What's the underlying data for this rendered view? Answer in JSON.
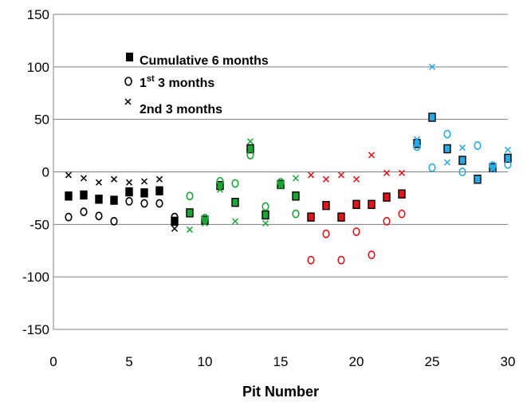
{
  "chart_data": {
    "type": "scatter",
    "title": "",
    "xlabel": "Pit Number",
    "ylabel": "",
    "xlim": [
      0,
      30
    ],
    "ylim": [
      -150,
      150
    ],
    "x_ticks": [
      "0",
      "5",
      "10",
      "15",
      "20",
      "25",
      "30"
    ],
    "y_ticks": [
      "150",
      "100",
      "50",
      "0",
      "-50",
      "-100",
      "-150"
    ],
    "grid": "horizontal",
    "legend": {
      "placement": "upper-left",
      "entries": [
        {
          "marker": "square",
          "label": "Cumulative 6 months"
        },
        {
          "marker": "circle",
          "label_main": "1",
          "label_sup": "st",
          "label_tail": " 3 months"
        },
        {
          "marker": "x",
          "label": "2nd 3 months"
        }
      ]
    },
    "colors": {
      "black": "#000000",
      "green": "#1aa535",
      "red": "#e3141c",
      "cyan": "#29a9e1",
      "grid": "#808080",
      "square_border": "#000000"
    },
    "series": [
      {
        "marker": "square",
        "points": [
          {
            "x": 1,
            "y": -23,
            "color": "black"
          },
          {
            "x": 2,
            "y": -22,
            "color": "black"
          },
          {
            "x": 3,
            "y": -26,
            "color": "black"
          },
          {
            "x": 4,
            "y": -27,
            "color": "black"
          },
          {
            "x": 5,
            "y": -19,
            "color": "black"
          },
          {
            "x": 6,
            "y": -20,
            "color": "black"
          },
          {
            "x": 7,
            "y": -18,
            "color": "black"
          },
          {
            "x": 8,
            "y": -47,
            "color": "black"
          },
          {
            "x": 9,
            "y": -39,
            "color": "green"
          },
          {
            "x": 10,
            "y": -46,
            "color": "green"
          },
          {
            "x": 11,
            "y": -13,
            "color": "green"
          },
          {
            "x": 12,
            "y": -29,
            "color": "green"
          },
          {
            "x": 13,
            "y": 22,
            "color": "green"
          },
          {
            "x": 14,
            "y": -41,
            "color": "green"
          },
          {
            "x": 15,
            "y": -12,
            "color": "green"
          },
          {
            "x": 16,
            "y": -23,
            "color": "green"
          },
          {
            "x": 17,
            "y": -43,
            "color": "red"
          },
          {
            "x": 18,
            "y": -32,
            "color": "red"
          },
          {
            "x": 19,
            "y": -43,
            "color": "red"
          },
          {
            "x": 20,
            "y": -31,
            "color": "red"
          },
          {
            "x": 21,
            "y": -31,
            "color": "red"
          },
          {
            "x": 22,
            "y": -24,
            "color": "red"
          },
          {
            "x": 23,
            "y": -21,
            "color": "red"
          },
          {
            "x": 24,
            "y": 27,
            "color": "cyan"
          },
          {
            "x": 25,
            "y": 52,
            "color": "cyan"
          },
          {
            "x": 26,
            "y": 22,
            "color": "cyan"
          },
          {
            "x": 27,
            "y": 11,
            "color": "cyan"
          },
          {
            "x": 28,
            "y": -7,
            "color": "cyan"
          },
          {
            "x": 29,
            "y": 4,
            "color": "cyan"
          },
          {
            "x": 30,
            "y": 13,
            "color": "cyan"
          }
        ]
      },
      {
        "marker": "circle",
        "points": [
          {
            "x": 1,
            "y": -43,
            "color": "black"
          },
          {
            "x": 2,
            "y": -38,
            "color": "black"
          },
          {
            "x": 3,
            "y": -42,
            "color": "black"
          },
          {
            "x": 4,
            "y": -47,
            "color": "black"
          },
          {
            "x": 5,
            "y": -28,
            "color": "black"
          },
          {
            "x": 6,
            "y": -30,
            "color": "black"
          },
          {
            "x": 7,
            "y": -30,
            "color": "black"
          },
          {
            "x": 8,
            "y": -43,
            "color": "black"
          },
          {
            "x": 9,
            "y": -23,
            "color": "green"
          },
          {
            "x": 10,
            "y": -44,
            "color": "green"
          },
          {
            "x": 11,
            "y": -9,
            "color": "green"
          },
          {
            "x": 12,
            "y": -11,
            "color": "green"
          },
          {
            "x": 13,
            "y": 16,
            "color": "green"
          },
          {
            "x": 14,
            "y": -33,
            "color": "green"
          },
          {
            "x": 15,
            "y": -10,
            "color": "green"
          },
          {
            "x": 16,
            "y": -40,
            "color": "green"
          },
          {
            "x": 17,
            "y": -84,
            "color": "red"
          },
          {
            "x": 18,
            "y": -59,
            "color": "red"
          },
          {
            "x": 19,
            "y": -84,
            "color": "red"
          },
          {
            "x": 20,
            "y": -57,
            "color": "red"
          },
          {
            "x": 21,
            "y": -79,
            "color": "red"
          },
          {
            "x": 22,
            "y": -47,
            "color": "red"
          },
          {
            "x": 23,
            "y": -40,
            "color": "red"
          },
          {
            "x": 24,
            "y": 24,
            "color": "cyan"
          },
          {
            "x": 25,
            "y": 4,
            "color": "cyan"
          },
          {
            "x": 26,
            "y": 36,
            "color": "cyan"
          },
          {
            "x": 27,
            "y": 0,
            "color": "cyan"
          },
          {
            "x": 28,
            "y": 25,
            "color": "cyan"
          },
          {
            "x": 29,
            "y": 6,
            "color": "cyan"
          },
          {
            "x": 30,
            "y": 7,
            "color": "cyan"
          }
        ]
      },
      {
        "marker": "x",
        "points": [
          {
            "x": 1,
            "y": -3,
            "color": "black"
          },
          {
            "x": 2,
            "y": -6,
            "color": "black"
          },
          {
            "x": 3,
            "y": -10,
            "color": "black"
          },
          {
            "x": 4,
            "y": -7,
            "color": "black"
          },
          {
            "x": 5,
            "y": -10,
            "color": "black"
          },
          {
            "x": 6,
            "y": -9,
            "color": "black"
          },
          {
            "x": 7,
            "y": -7,
            "color": "black"
          },
          {
            "x": 8,
            "y": -54,
            "color": "black"
          },
          {
            "x": 9,
            "y": -55,
            "color": "green"
          },
          {
            "x": 10,
            "y": -49,
            "color": "green"
          },
          {
            "x": 11,
            "y": -17,
            "color": "green"
          },
          {
            "x": 12,
            "y": -47,
            "color": "green"
          },
          {
            "x": 13,
            "y": 29,
            "color": "green"
          },
          {
            "x": 14,
            "y": -49,
            "color": "green"
          },
          {
            "x": 15,
            "y": -14,
            "color": "green"
          },
          {
            "x": 16,
            "y": -6,
            "color": "green"
          },
          {
            "x": 17,
            "y": -3,
            "color": "red"
          },
          {
            "x": 18,
            "y": -7,
            "color": "red"
          },
          {
            "x": 19,
            "y": -3,
            "color": "red"
          },
          {
            "x": 20,
            "y": -7,
            "color": "red"
          },
          {
            "x": 21,
            "y": 16,
            "color": "red"
          },
          {
            "x": 22,
            "y": -1,
            "color": "red"
          },
          {
            "x": 23,
            "y": -1,
            "color": "red"
          },
          {
            "x": 24,
            "y": 31,
            "color": "cyan"
          },
          {
            "x": 25,
            "y": 100,
            "color": "cyan"
          },
          {
            "x": 26,
            "y": 9,
            "color": "cyan"
          },
          {
            "x": 27,
            "y": 23,
            "color": "cyan"
          },
          {
            "x": 28,
            "y": -7,
            "color": "cyan"
          },
          {
            "x": 29,
            "y": 2,
            "color": "cyan"
          },
          {
            "x": 30,
            "y": 21,
            "color": "cyan"
          }
        ]
      }
    ]
  }
}
